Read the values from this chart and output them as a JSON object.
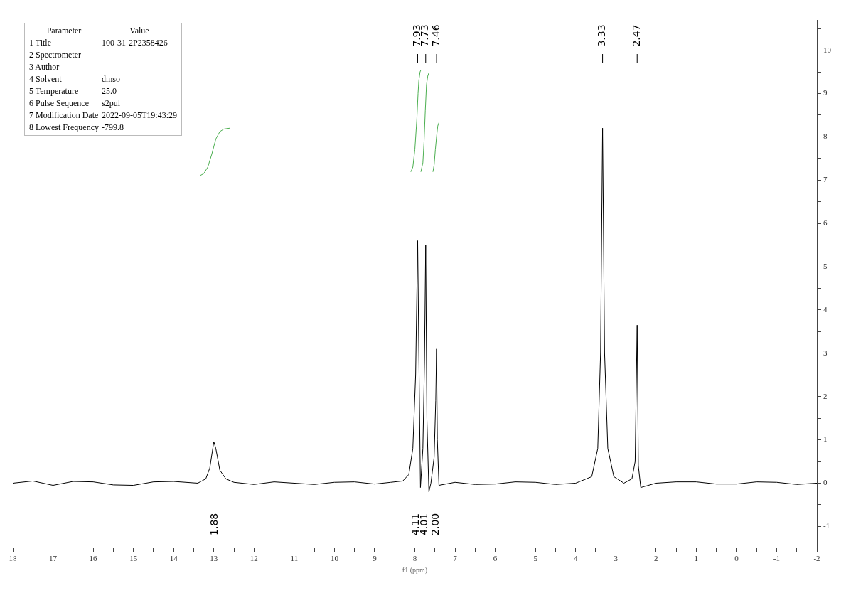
{
  "chart_data": {
    "type": "line",
    "xlabel": "f1 (ppm)",
    "xlim": [
      18,
      -2
    ],
    "xticks": [
      18,
      {
        "value": 17.5,
        "label": null
      },
      17,
      {
        "value": 16.5,
        "label": null
      },
      16,
      {
        "value": 15.5,
        "label": null
      },
      15,
      {
        "value": 14.5,
        "label": null
      },
      14,
      {
        "value": 13.5,
        "label": null
      },
      13,
      {
        "value": 12.5,
        "label": null
      },
      12,
      {
        "value": 11.5,
        "label": null
      },
      11,
      {
        "value": 10.5,
        "label": null
      },
      10,
      {
        "value": 9.5,
        "label": null
      },
      9,
      {
        "value": 8.5,
        "label": null
      },
      8,
      {
        "value": 7.5,
        "label": null
      },
      7,
      {
        "value": 6.5,
        "label": null
      },
      6,
      {
        "value": 5.5,
        "label": null
      },
      5,
      {
        "value": 4.5,
        "label": null
      },
      4,
      {
        "value": 3.5,
        "label": null
      },
      3,
      {
        "value": 2.5,
        "label": null
      },
      2,
      {
        "value": 1.5,
        "label": null
      },
      1,
      {
        "value": 0.5,
        "label": null
      },
      0,
      {
        "value": -0.5,
        "label": null
      },
      -1,
      {
        "value": -1.5,
        "label": null
      },
      -2
    ],
    "ylim": [
      -1.5,
      10.7
    ],
    "yticks": [
      {
        "value": -1.5,
        "label": null
      },
      -1,
      {
        "value": -0.5,
        "label": null
      },
      0,
      {
        "value": 0.5,
        "label": null
      },
      1,
      {
        "value": 1.5,
        "label": null
      },
      2,
      {
        "value": 2.5,
        "label": null
      },
      3,
      {
        "value": 3.5,
        "label": null
      },
      4,
      {
        "value": 4.5,
        "label": null
      },
      5,
      {
        "value": 5.5,
        "label": null
      },
      6,
      {
        "value": 6.5,
        "label": null
      },
      7,
      {
        "value": 7.5,
        "label": null
      },
      8,
      {
        "value": 8.5,
        "label": null
      },
      9,
      {
        "value": 9.5,
        "label": null
      },
      10,
      {
        "value": 10.5,
        "label": null
      }
    ],
    "grid": false,
    "legend": false,
    "marker": "none",
    "line_style": "solid",
    "series": [
      {
        "color": "#000000",
        "x": [
          18,
          17.5,
          17,
          16.5,
          16,
          15.5,
          15,
          14.5,
          14,
          13.4,
          13.2,
          13.1,
          13.0,
          12.95,
          12.85,
          12.7,
          12.5,
          12,
          11.5,
          11,
          10.5,
          10,
          9.5,
          9,
          8.6,
          8.3,
          8.15,
          8.05,
          7.98,
          7.93,
          7.9,
          7.86,
          7.8,
          7.76,
          7.73,
          7.7,
          7.65,
          7.6,
          7.52,
          7.48,
          7.46,
          7.44,
          7.4,
          7,
          6.5,
          6,
          5.5,
          5,
          4.5,
          4,
          3.6,
          3.45,
          3.38,
          3.33,
          3.28,
          3.2,
          3.05,
          2.8,
          2.6,
          2.52,
          2.47,
          2.44,
          2.38,
          2,
          1.5,
          1,
          0.5,
          0,
          -0.5,
          -1,
          -1.5,
          -2
        ],
        "values": [
          0,
          0.05,
          -0.05,
          0.04,
          0.03,
          -0.04,
          -0.05,
          0.03,
          0.04,
          0,
          0.1,
          0.35,
          0.96,
          0.8,
          0.3,
          0.1,
          0.02,
          -0.03,
          0.03,
          0,
          -0.03,
          0.02,
          0.03,
          -0.02,
          0.02,
          0.05,
          0.2,
          0.8,
          2.5,
          5.6,
          3.0,
          -0.1,
          0.8,
          2.8,
          5.5,
          1.5,
          -0.2,
          0,
          0.6,
          1.9,
          3.1,
          1.0,
          -0.05,
          0.02,
          -0.03,
          -0.02,
          0.03,
          0.02,
          -0.03,
          0,
          0.15,
          0.8,
          3.0,
          8.2,
          3.0,
          0.8,
          0.15,
          0,
          0.1,
          0.5,
          3.65,
          0.4,
          -0.1,
          0,
          0.03,
          0.03,
          -0.02,
          -0.02,
          0.03,
          0.02,
          -0.03,
          0
        ]
      },
      {
        "color": "#4caf50",
        "x": [
          13.35,
          13.25,
          13.15,
          13.05,
          12.95,
          12.85,
          12.75,
          12.6
        ],
        "values": [
          7.1,
          7.15,
          7.3,
          7.6,
          7.95,
          8.12,
          8.18,
          8.2
        ]
      },
      {
        "color": "#4caf50",
        "x": [
          8.1,
          8.05,
          8.0,
          7.95,
          7.92,
          7.9,
          7.87,
          7.85
        ],
        "values": [
          7.19,
          7.3,
          7.7,
          8.4,
          9.0,
          9.3,
          9.5,
          9.54
        ]
      },
      {
        "color": "#4caf50",
        "x": [
          7.85,
          7.8,
          7.77,
          7.74,
          7.71,
          7.68,
          7.65
        ],
        "values": [
          7.19,
          7.4,
          7.9,
          8.6,
          9.2,
          9.4,
          9.48
        ]
      },
      {
        "color": "#4caf50",
        "x": [
          7.55,
          7.52,
          7.49,
          7.46,
          7.43,
          7.4
        ],
        "values": [
          7.19,
          7.35,
          7.7,
          8.0,
          8.25,
          8.33
        ]
      }
    ],
    "annotations": [
      {
        "text": "7.93",
        "x": 7.93
      },
      {
        "text": "7.73",
        "x": 7.73
      },
      {
        "text": "7.46",
        "x": 7.46
      },
      {
        "text": "3.33",
        "x": 3.33
      },
      {
        "text": "2.47",
        "x": 2.47
      },
      "1.88",
      "4.11",
      "4.01",
      "2.00",
      "Parameter\tValue",
      "1 Title\t100-31-2P2358426",
      "2 Spectrometer",
      "3 Author",
      "4 Solvent\tdmso",
      "5 Temperature\t25.0",
      "6 Pulse Sequence\ts2pul",
      "7 Modification Date\t2022-09-05T19:43:29",
      "8 Lowest Frequency\t-799.8"
    ]
  }
}
